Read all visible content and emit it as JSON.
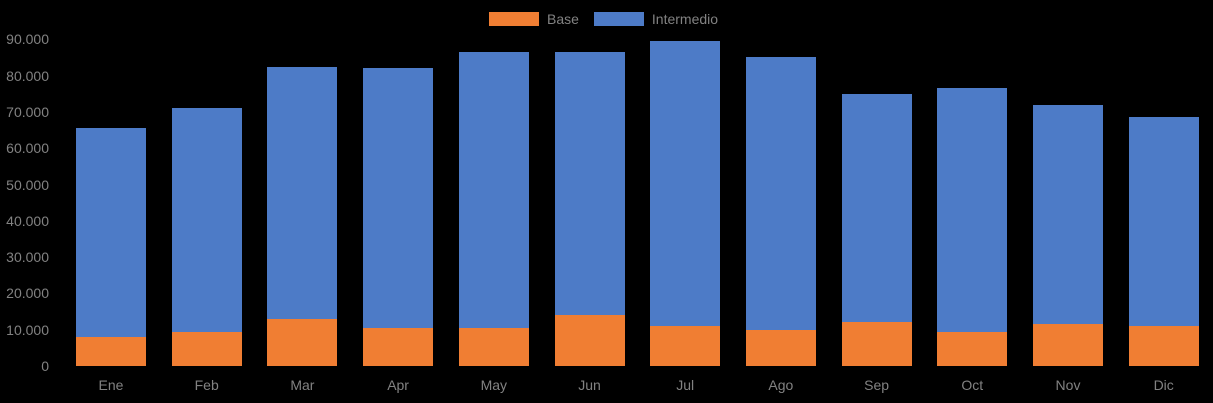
{
  "colors": {
    "background": "#000000",
    "axis_text": "#828282",
    "base_series": "#F07E33",
    "intermedio_series": "#4D7BC7"
  },
  "legend": {
    "position": "top-center",
    "items": [
      {
        "label": "Base",
        "color": "#F07E33"
      },
      {
        "label": "Intermedio",
        "color": "#4D7BC7"
      }
    ]
  },
  "chart_data": {
    "type": "bar",
    "stacked": true,
    "title": "",
    "xlabel": "",
    "ylabel": "",
    "categories": [
      "Ene",
      "Feb",
      "Mar",
      "Apr",
      "May",
      "Jun",
      "Jul",
      "Ago",
      "Sep",
      "Oct",
      "Nov",
      "Dic"
    ],
    "series": [
      {
        "name": "Base",
        "color": "#F07E33",
        "values": [
          8000,
          9500,
          13000,
          10500,
          10500,
          14000,
          11000,
          10000,
          12000,
          9500,
          11500,
          11000
        ]
      },
      {
        "name": "Intermedio",
        "color": "#4D7BC7",
        "values": [
          57500,
          61500,
          69500,
          71500,
          76000,
          72500,
          78500,
          75000,
          63000,
          67000,
          60500,
          57500
        ]
      }
    ],
    "stack_totals": [
      65500,
      71000,
      82500,
      82000,
      86500,
      86500,
      89500,
      85000,
      75000,
      76500,
      72000,
      68500
    ],
    "ylim": [
      0,
      90000
    ],
    "y_ticks": [
      {
        "value": 0,
        "label": "0"
      },
      {
        "value": 10000,
        "label": "10.000"
      },
      {
        "value": 20000,
        "label": "20.000"
      },
      {
        "value": 30000,
        "label": "30.000"
      },
      {
        "value": 40000,
        "label": "40.000"
      },
      {
        "value": 50000,
        "label": "50.000"
      },
      {
        "value": 60000,
        "label": "60.000"
      },
      {
        "value": 70000,
        "label": "70.000"
      },
      {
        "value": 80000,
        "label": "80.000"
      },
      {
        "value": 90000,
        "label": "90.000"
      }
    ],
    "grid": false,
    "legend_position": "top-center"
  }
}
